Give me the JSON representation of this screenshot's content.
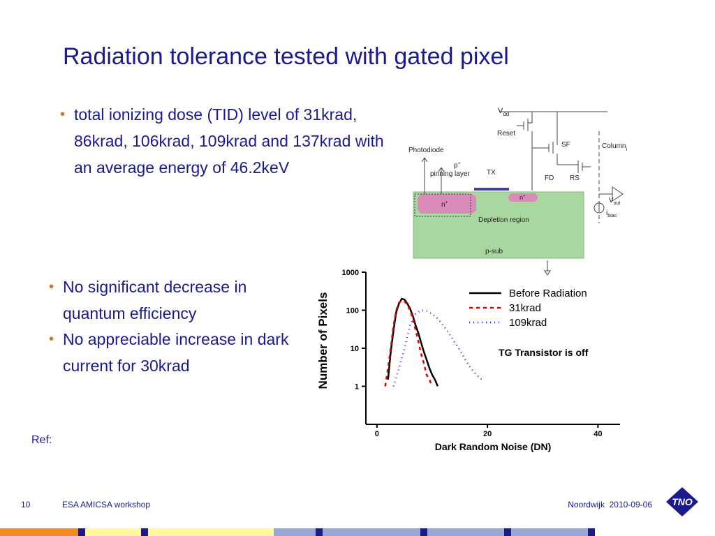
{
  "slide": {
    "title": "Radiation tolerance tested with gated pixel",
    "bullets_top": [
      "total ionizing dose (TID) level of 31krad, 86krad, 106krad, 109krad and 137krad with an average energy of 46.2keV"
    ],
    "bullets_bottom": [
      "No significant decrease in quantum efficiency",
      "No appreciable increase in dark current for 30krad"
    ],
    "ref_label": "Ref:"
  },
  "footer": {
    "slide_number": "10",
    "event": "ESA AMICSA workshop",
    "place_date": "Noordwijk  2010-09-06",
    "logo_text": "TNO"
  },
  "diagram": {
    "labels": {
      "vdd": "V",
      "vdd_sub": "dd",
      "reset": "Reset",
      "sf": "SF",
      "column": "Column",
      "column_sub": "i",
      "photodiode": "Photodiode",
      "p_plus": "p",
      "pinning_layer": "pinning layer",
      "tx": "TX",
      "fd": "FD",
      "rs": "RS",
      "n_plus_left": "n",
      "n_plus_right": "n",
      "vout": "V",
      "vout_sub": "out",
      "ibias": "i",
      "ibias_sub": "bias",
      "depletion": "Depletion region",
      "psub": "p-sub"
    }
  },
  "chart_data": {
    "type": "line",
    "title": "",
    "annotation": "TG Transistor is off",
    "xlabel": "Dark Random Noise (DN)",
    "ylabel": "Number of Pixels",
    "xlim": [
      -2,
      44
    ],
    "ylim": [
      0.1,
      1000
    ],
    "yscale": "log",
    "x_ticks": [
      "0",
      "20",
      "40"
    ],
    "y_ticks": [
      "1",
      "10",
      "100",
      "1000"
    ],
    "legend_position": "top-right",
    "series": [
      {
        "name": "Before Radiation",
        "color": "#000000",
        "dash": "",
        "x": [
          2.0,
          2.5,
          3.0,
          3.5,
          4.0,
          4.5,
          5.0,
          5.5,
          6.0,
          6.5,
          7.0,
          7.5,
          8.0,
          8.5,
          9.0,
          9.5,
          10.0,
          10.5,
          11.0
        ],
        "y": [
          1.5,
          8,
          30,
          90,
          150,
          200,
          190,
          150,
          110,
          70,
          40,
          25,
          14,
          8,
          5,
          3,
          2,
          1.5,
          1
        ]
      },
      {
        "name": "31krad",
        "color": "#e00000",
        "dash": "5,5",
        "x": [
          1.5,
          2.0,
          2.5,
          3.0,
          3.5,
          4.0,
          4.5,
          5.0,
          5.5,
          6.0,
          6.5,
          7.0,
          7.5,
          8.0,
          8.5,
          9.0,
          9.5,
          10.0
        ],
        "y": [
          1,
          3,
          10,
          40,
          100,
          160,
          180,
          170,
          140,
          100,
          60,
          30,
          15,
          7,
          4,
          2,
          1.5,
          1
        ]
      },
      {
        "name": "109krad",
        "color": "#1c1cff",
        "dash": "1,5",
        "x": [
          3,
          4,
          5,
          6,
          7,
          8,
          9,
          10,
          11,
          12,
          13,
          14,
          15,
          16,
          17,
          18,
          19
        ],
        "y": [
          1,
          3,
          10,
          40,
          80,
          100,
          95,
          80,
          60,
          40,
          25,
          15,
          9,
          5,
          3,
          2,
          1.5
        ]
      }
    ]
  },
  "colors": {
    "title": "#1a1a8c",
    "bullet_dot": "#e46c0a",
    "substrate": "#a8d8a0",
    "n_plus": "#d88ab8",
    "gate": "#4040a8",
    "bottom_bar": [
      "#f28c1c",
      "#1a1a8c",
      "#fff79a",
      "#1a1a8c",
      "#fff79a",
      "#9aa6d8",
      "#1a1a8c",
      "#9aa6d8",
      "#1a1a8c",
      "#9aa6d8",
      "#1a1a8c",
      "#9aa6d8",
      "#1a1a8c",
      "#ffffff"
    ]
  }
}
